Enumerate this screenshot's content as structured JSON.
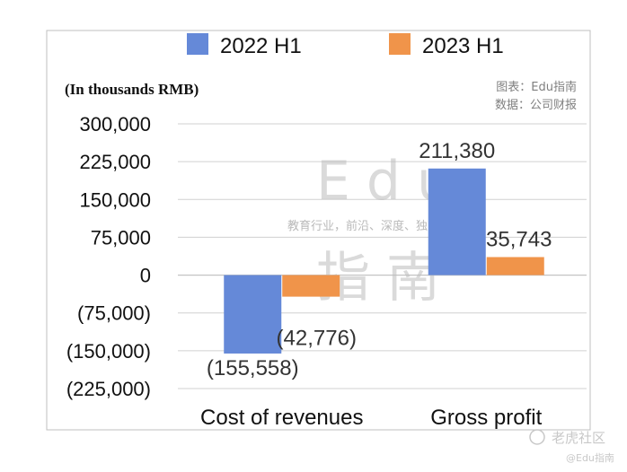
{
  "chart_data": {
    "type": "bar",
    "unit_note": "(In thousands RMB)",
    "categories": [
      "Cost of revenues",
      "Gross profit"
    ],
    "series": [
      {
        "name": "2022 H1",
        "values": [
          -155558,
          211380
        ],
        "labels": [
          "(155,558)",
          "211,380"
        ]
      },
      {
        "name": "2023 H1",
        "values": [
          -42776,
          35743
        ],
        "labels": [
          "(42,776)",
          "35,743"
        ]
      }
    ],
    "ylim": [
      -225000,
      300000
    ],
    "yticks": [
      300000,
      225000,
      150000,
      75000,
      0,
      -75000,
      -150000,
      -225000
    ],
    "ytick_labels": [
      "300,000",
      "225,000",
      "150,000",
      "75,000",
      "0",
      "(75,000)",
      "(150,000)",
      "(225,000)"
    ],
    "grid": true,
    "legend_position": "top",
    "source_lines": [
      "图表：Edu指南",
      "数据：公司财报"
    ],
    "colors": {
      "2022 H1": "#6589d8",
      "2023 H1": "#f0944a"
    }
  },
  "watermark": {
    "big_latin": "Edu",
    "tagline": "教育行业，前沿、深度、独家",
    "big_cjk": "指南",
    "corner_main": "老虎社区",
    "corner_sub": "@Edu指南"
  }
}
